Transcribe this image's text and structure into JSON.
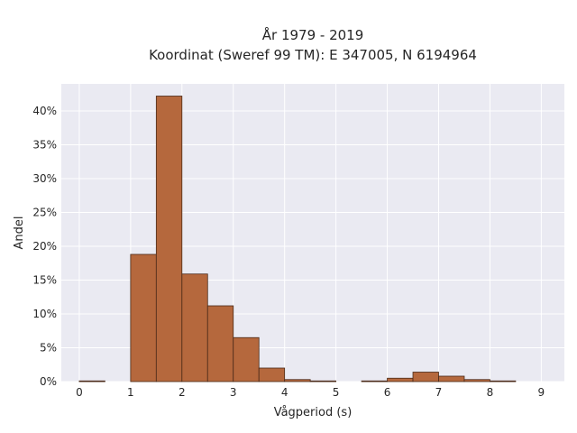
{
  "chart_data": {
    "type": "bar",
    "title": "År 1979 - 2019",
    "subtitle": "Koordinat (Sweref 99 TM): E 347005, N 6194964",
    "xlabel": "Vågperiod (s)",
    "ylabel": "Andel",
    "xlim": [
      -0.35,
      9.45
    ],
    "ylim": [
      0,
      44
    ],
    "x_ticks": [
      0,
      1,
      2,
      3,
      4,
      5,
      6,
      7,
      8,
      9
    ],
    "y_ticks": [
      0,
      5,
      10,
      15,
      20,
      25,
      30,
      35,
      40
    ],
    "y_tick_labels": [
      "0%",
      "5%",
      "10%",
      "15%",
      "20%",
      "25%",
      "30%",
      "35%",
      "40%"
    ],
    "bin_width": 0.5,
    "bins": [
      0,
      0.5,
      1,
      1.5,
      2,
      2.5,
      3,
      3.5,
      4,
      4.5,
      5,
      5.5,
      6,
      6.5,
      7,
      7.5,
      8,
      8.5
    ],
    "values": [
      0.1,
      0,
      18.8,
      42.2,
      15.9,
      11.2,
      6.5,
      2.0,
      0.3,
      0.1,
      0,
      0.1,
      0.5,
      1.4,
      0.8,
      0.3,
      0.1,
      0
    ],
    "grid": true,
    "colors": {
      "bar_fill": "#b5683d",
      "bar_edge": "#4a2a18",
      "plot_background": "#eaeaf2",
      "grid": "#ffffff"
    }
  }
}
